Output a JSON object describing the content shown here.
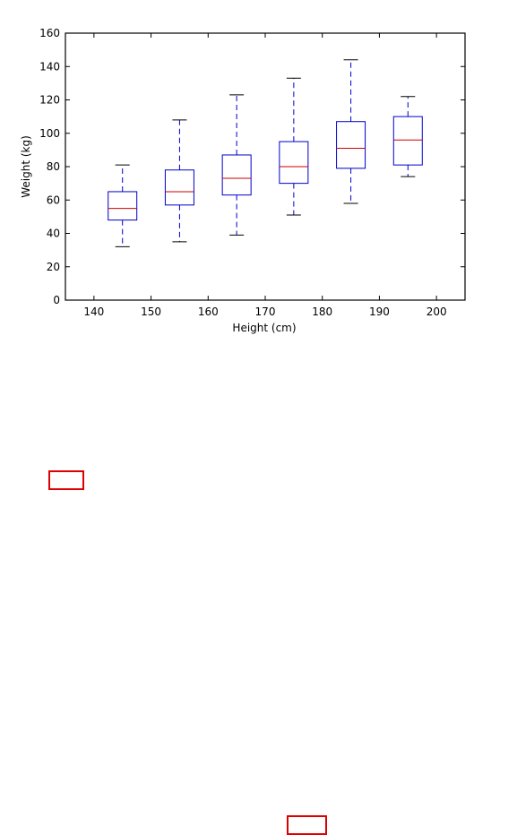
{
  "chart_data": {
    "type": "box",
    "xlabel": "Height (cm)",
    "ylabel": "Weight (kg)",
    "xlim": [
      135,
      205
    ],
    "ylim": [
      0,
      160
    ],
    "xticks": [
      140,
      150,
      160,
      170,
      180,
      190,
      200
    ],
    "yticks": [
      0,
      20,
      40,
      60,
      80,
      100,
      120,
      140,
      160
    ],
    "grid": false,
    "colors": {
      "box": "#0000cc",
      "median": "#cc0000",
      "whisker": "#0000cc",
      "cap": "#000000"
    },
    "boxes": [
      {
        "x": 145,
        "whisker_low": 32,
        "q1": 48,
        "median": 55,
        "q3": 65,
        "whisker_high": 81
      },
      {
        "x": 155,
        "whisker_low": 35,
        "q1": 57,
        "median": 65,
        "q3": 78,
        "whisker_high": 108
      },
      {
        "x": 165,
        "whisker_low": 39,
        "q1": 63,
        "median": 73,
        "q3": 87,
        "whisker_high": 123
      },
      {
        "x": 175,
        "whisker_low": 51,
        "q1": 70,
        "median": 80,
        "q3": 95,
        "whisker_high": 133
      },
      {
        "x": 185,
        "whisker_low": 58,
        "q1": 79,
        "median": 91,
        "q3": 107,
        "whisker_high": 144
      },
      {
        "x": 195,
        "whisker_low": 74,
        "q1": 81,
        "median": 96,
        "q3": 110,
        "whisker_high": 122
      }
    ]
  }
}
